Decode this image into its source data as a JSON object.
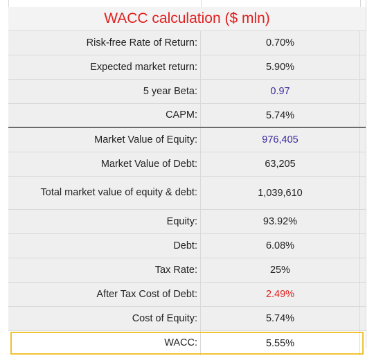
{
  "sheet": {
    "title": "WACC calculation ($ mln)",
    "rows": [
      {
        "label": "Risk-free Rate of Return:",
        "value": "0.70%"
      },
      {
        "label": "Expected market return:",
        "value": "5.90%"
      },
      {
        "label": "5 year Beta:",
        "value": "0.97"
      },
      {
        "label": "CAPM:",
        "value": "5.74%"
      },
      {
        "label": "Market Value of Equity:",
        "value": "976,405"
      },
      {
        "label": "Market Value of Debt:",
        "value": "63,205"
      },
      {
        "label": "Total market value of equity & debt:",
        "value": "1,039,610"
      },
      {
        "label": "Equity:",
        "value": "93.92%"
      },
      {
        "label": "Debt:",
        "value": "6.08%"
      },
      {
        "label": "Tax Rate:",
        "value": "25%"
      },
      {
        "label": "After Tax Cost of Debt:",
        "value": "2.49%"
      },
      {
        "label": "Cost of Equity:",
        "value": "5.74%"
      },
      {
        "label": "WACC:",
        "value": "5.55%"
      }
    ]
  },
  "colors": {
    "title": "#e02020",
    "input_blue": "#3a2a9c",
    "highlight_border": "#f1c232",
    "row_background": "#efefef",
    "grid_line": "#d9d9d9"
  }
}
